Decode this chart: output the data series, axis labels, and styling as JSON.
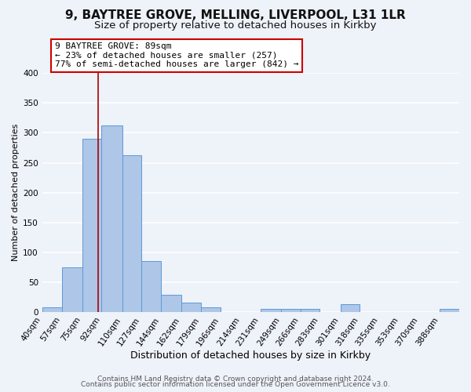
{
  "title1": "9, BAYTREE GROVE, MELLING, LIVERPOOL, L31 1LR",
  "title2": "Size of property relative to detached houses in Kirkby",
  "xlabel": "Distribution of detached houses by size in Kirkby",
  "ylabel": "Number of detached properties",
  "bin_labels": [
    "40sqm",
    "57sqm",
    "75sqm",
    "92sqm",
    "110sqm",
    "127sqm",
    "144sqm",
    "162sqm",
    "179sqm",
    "196sqm",
    "214sqm",
    "231sqm",
    "249sqm",
    "266sqm",
    "283sqm",
    "301sqm",
    "318sqm",
    "335sqm",
    "353sqm",
    "370sqm",
    "388sqm"
  ],
  "bar_heights": [
    8,
    75,
    290,
    313,
    263,
    85,
    28,
    16,
    8,
    0,
    0,
    5,
    5,
    5,
    0,
    13,
    0,
    0,
    0,
    0,
    5
  ],
  "bar_color": "#aec6e8",
  "bar_edge_color": "#5b9bd5",
  "property_line_x": 89,
  "bin_edges": [
    40,
    57,
    75,
    92,
    110,
    127,
    144,
    162,
    179,
    196,
    214,
    231,
    249,
    266,
    283,
    301,
    318,
    335,
    353,
    370,
    388,
    405
  ],
  "ylim": [
    0,
    400
  ],
  "yticks": [
    0,
    50,
    100,
    150,
    200,
    250,
    300,
    350,
    400
  ],
  "annotation_title": "9 BAYTREE GROVE: 89sqm",
  "annotation_line1": "← 23% of detached houses are smaller (257)",
  "annotation_line2": "77% of semi-detached houses are larger (842) →",
  "annotation_box_color": "#ffffff",
  "annotation_box_edge": "#cc0000",
  "footer1": "Contains HM Land Registry data © Crown copyright and database right 2024.",
  "footer2": "Contains public sector information licensed under the Open Government Licence v3.0.",
  "background_color": "#eef2f9",
  "grid_color": "#ffffff",
  "title1_fontsize": 11,
  "title2_fontsize": 9.5,
  "xlabel_fontsize": 9,
  "ylabel_fontsize": 8,
  "tick_fontsize": 7.5,
  "footer_fontsize": 6.5,
  "vline_color": "#aa0000",
  "ann_fontsize": 8
}
